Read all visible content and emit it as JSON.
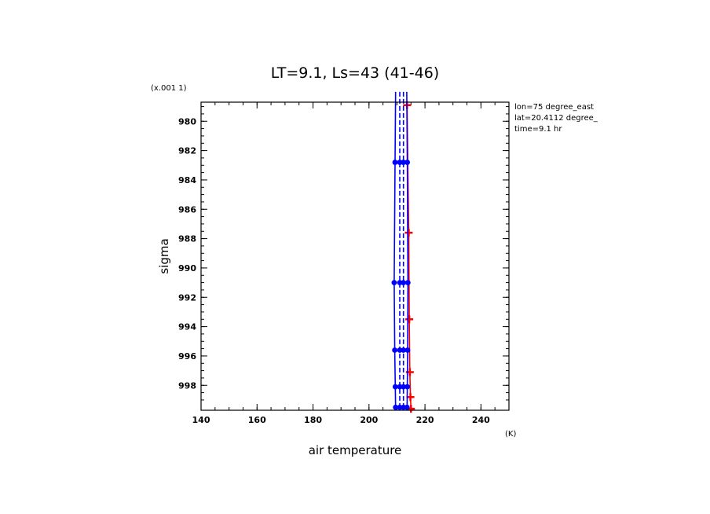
{
  "chart_data": {
    "type": "line",
    "title": "LT=9.1, Ls=43 (41-46)",
    "xlabel": "air temperature",
    "xunits": "(K)",
    "ylabel": "sigma",
    "yscale_note": "(x.001 1)",
    "xlim": [
      140,
      250
    ],
    "ylim": [
      978.7,
      999.7
    ],
    "x_ticks": [
      140,
      160,
      180,
      200,
      220,
      240
    ],
    "y_ticks": [
      980,
      982,
      984,
      986,
      988,
      990,
      992,
      994,
      996,
      998
    ],
    "y_tick_labels": [
      "980",
      "982",
      "984",
      "986",
      "988",
      "990",
      "992",
      "994",
      "996",
      "998"
    ],
    "y_inverted": true,
    "info": [
      "lon=75 degree_east",
      "lat=20.4112 degree_",
      "time=9.1 hr"
    ],
    "series": [
      {
        "color": "#ff0000",
        "style": "solid",
        "marker": "plus",
        "x": [
          213.6,
          214.2,
          214.4,
          214.6,
          214.8,
          215.0
        ],
        "y": [
          978.9,
          987.6,
          993.5,
          997.1,
          998.8,
          999.6
        ]
      },
      {
        "color": "#0000ff",
        "style": "solid",
        "marker": "dot",
        "x": [
          209.5,
          209.3,
          209.0,
          209.2,
          209.4,
          209.5
        ],
        "y": [
          978.0,
          982.8,
          991.0,
          995.6,
          998.1,
          999.5
        ]
      },
      {
        "color": "#0000ff",
        "style": "dashed",
        "marker": "dot",
        "x": [
          211.0,
          211.0,
          211.0,
          211.0,
          211.0,
          211.0
        ],
        "y": [
          978.0,
          982.8,
          991.0,
          995.6,
          998.1,
          999.5
        ]
      },
      {
        "color": "#0000ff",
        "style": "dashed",
        "marker": "dot",
        "x": [
          212.3,
          212.3,
          212.3,
          212.3,
          212.3,
          212.3
        ],
        "y": [
          978.0,
          982.8,
          991.0,
          995.6,
          998.1,
          999.5
        ]
      },
      {
        "color": "#0000ff",
        "style": "solid",
        "marker": "dot",
        "x": [
          213.5,
          213.7,
          213.9,
          213.8,
          213.7,
          213.6
        ],
        "y": [
          978.0,
          982.8,
          991.0,
          995.6,
          998.1,
          999.5
        ]
      }
    ]
  }
}
